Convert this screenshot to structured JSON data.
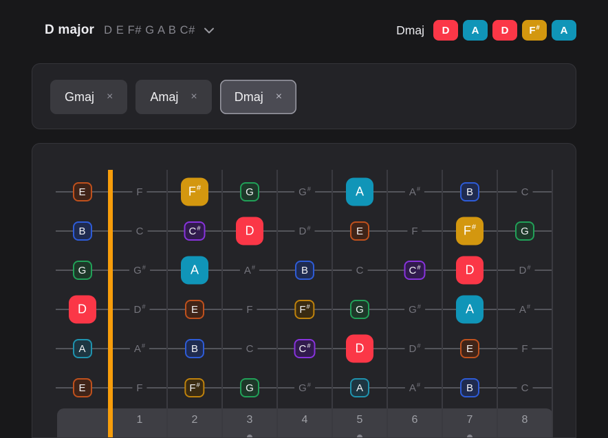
{
  "header": {
    "key_title": "D major",
    "scale_notes": "D E F# G A B C#",
    "chord_label": "Dmaj",
    "chord_notes": [
      "D",
      "A",
      "D",
      "F#",
      "A"
    ]
  },
  "chords": {
    "items": [
      {
        "label": "Gmaj",
        "selected": false
      },
      {
        "label": "Amaj",
        "selected": false
      },
      {
        "label": "Dmaj",
        "selected": true
      }
    ],
    "close_glyph": "×"
  },
  "fretboard": {
    "fret_numbers": [
      "1",
      "2",
      "3",
      "4",
      "5",
      "6",
      "7",
      "8"
    ],
    "marker_frets": [
      3,
      5,
      7
    ],
    "strings": [
      [
        {
          "n": "E",
          "k": "scale"
        },
        {
          "n": "F",
          "k": "off"
        },
        {
          "n": "F#",
          "k": "chord"
        },
        {
          "n": "G",
          "k": "scale"
        },
        {
          "n": "G#",
          "k": "off"
        },
        {
          "n": "A",
          "k": "chord"
        },
        {
          "n": "A#",
          "k": "off"
        },
        {
          "n": "B",
          "k": "scale"
        },
        {
          "n": "C",
          "k": "off"
        }
      ],
      [
        {
          "n": "B",
          "k": "scale"
        },
        {
          "n": "C",
          "k": "off"
        },
        {
          "n": "C#",
          "k": "scale"
        },
        {
          "n": "D",
          "k": "chord"
        },
        {
          "n": "D#",
          "k": "off"
        },
        {
          "n": "E",
          "k": "scale"
        },
        {
          "n": "F",
          "k": "off"
        },
        {
          "n": "F#",
          "k": "chord"
        },
        {
          "n": "G",
          "k": "scale"
        }
      ],
      [
        {
          "n": "G",
          "k": "scale"
        },
        {
          "n": "G#",
          "k": "off"
        },
        {
          "n": "A",
          "k": "chord"
        },
        {
          "n": "A#",
          "k": "off"
        },
        {
          "n": "B",
          "k": "scale"
        },
        {
          "n": "C",
          "k": "off"
        },
        {
          "n": "C#",
          "k": "scale"
        },
        {
          "n": "D",
          "k": "chord"
        },
        {
          "n": "D#",
          "k": "off"
        }
      ],
      [
        {
          "n": "D",
          "k": "chord"
        },
        {
          "n": "D#",
          "k": "off"
        },
        {
          "n": "E",
          "k": "scale"
        },
        {
          "n": "F",
          "k": "off"
        },
        {
          "n": "F#",
          "k": "scale"
        },
        {
          "n": "G",
          "k": "scale"
        },
        {
          "n": "G#",
          "k": "off"
        },
        {
          "n": "A",
          "k": "chord"
        },
        {
          "n": "A#",
          "k": "off"
        }
      ],
      [
        {
          "n": "A",
          "k": "scale"
        },
        {
          "n": "A#",
          "k": "off"
        },
        {
          "n": "B",
          "k": "scale"
        },
        {
          "n": "C",
          "k": "off"
        },
        {
          "n": "C#",
          "k": "scale"
        },
        {
          "n": "D",
          "k": "chord"
        },
        {
          "n": "D#",
          "k": "off"
        },
        {
          "n": "E",
          "k": "scale"
        },
        {
          "n": "F",
          "k": "off"
        }
      ],
      [
        {
          "n": "E",
          "k": "scale"
        },
        {
          "n": "F",
          "k": "off"
        },
        {
          "n": "F#",
          "k": "scale"
        },
        {
          "n": "G",
          "k": "scale"
        },
        {
          "n": "G#",
          "k": "off"
        },
        {
          "n": "A",
          "k": "scale"
        },
        {
          "n": "A#",
          "k": "off"
        },
        {
          "n": "B",
          "k": "scale"
        },
        {
          "n": "C",
          "k": "off"
        }
      ]
    ]
  },
  "colors": {
    "nut": "#f79d0b",
    "string_line": "#54555b",
    "fret_line": "#3a3a40",
    "panel_bg": "#242428",
    "notes": {
      "D": {
        "main": "#fb3747",
        "dim_border": "#e23a46",
        "dim_bg": "#42151c"
      },
      "A": {
        "main": "#1095b8",
        "dim_border": "#1f93af",
        "dim_bg": "#1d3642"
      },
      "F#": {
        "main": "#d3970f",
        "dim_border": "#c0830c",
        "dim_bg": "#3a2b12"
      },
      "E": {
        "main": "#c2511f",
        "dim_border": "#c0511d",
        "dim_bg": "#402418"
      },
      "B": {
        "main": "#2e5cd8",
        "dim_border": "#2e5cd8",
        "dim_bg": "#1f2b50"
      },
      "G": {
        "main": "#21a158",
        "dim_border": "#21a158",
        "dim_bg": "#1d3829"
      },
      "C#": {
        "main": "#8833dd",
        "dim_border": "#8833dd",
        "dim_bg": "#311b4d"
      }
    }
  }
}
